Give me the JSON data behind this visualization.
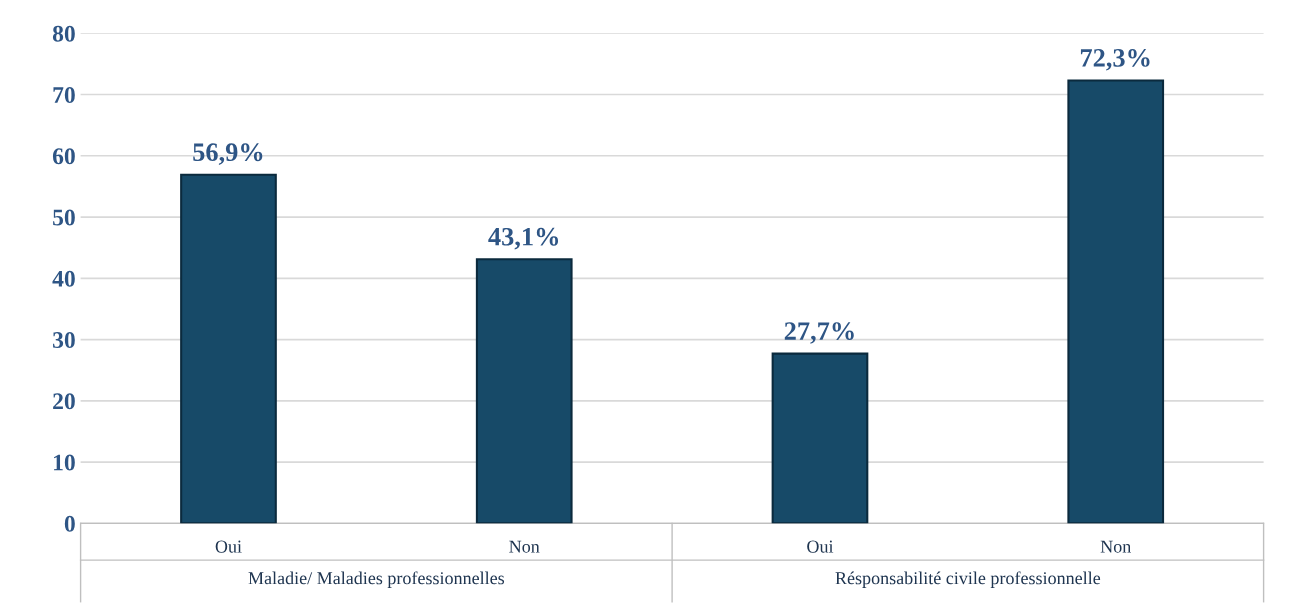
{
  "chart_data": {
    "type": "bar",
    "categories": [
      "Oui",
      "Non",
      "Oui",
      "Non"
    ],
    "values": [
      56.9,
      43.1,
      27.7,
      72.3
    ],
    "value_labels": [
      "56,9%",
      "43,1%",
      "27,7%",
      "72,3%"
    ],
    "color": "#174a68",
    "ylim": [
      0,
      80
    ],
    "yticks": [
      0,
      10,
      20,
      30,
      40,
      50,
      60,
      70,
      80
    ],
    "grid": "y",
    "annotations": [
      "Maladie/ Maladies professionnelles",
      "Résponsabilité civile professionnelle"
    ]
  }
}
